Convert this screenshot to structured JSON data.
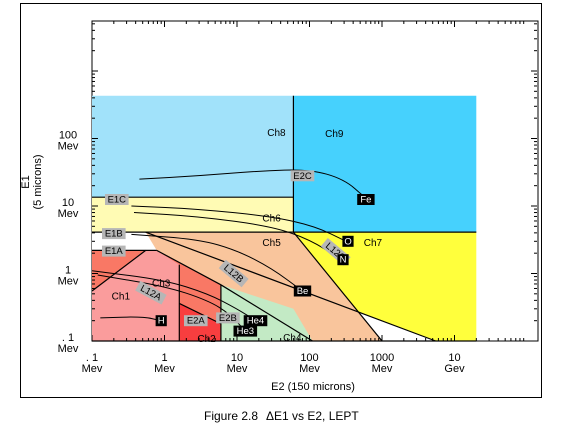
{
  "colors": {
    "ch8": "#a1e2fa",
    "ch9": "#46d1fd",
    "ch6": "#fffbb4",
    "ch7": "#ffff3c",
    "ch5": "#f9c59c",
    "ch3": "#f97865",
    "ch1": "#fa9c9c",
    "ch2": "#f83e3f",
    "ch4": "#c3eac5",
    "plot_bg": "#b6b6b6"
  },
  "chart_data": {
    "type": "diagram",
    "xlabel": "E2 (150 microns)",
    "ylabel_lines": [
      "E1",
      "(5 microns)"
    ],
    "x_axis": {
      "scale": "log",
      "ticks": [
        {
          "value": 0.1,
          "line1": ". 1",
          "line2": "Mev"
        },
        {
          "value": 1,
          "line1": "1",
          "line2": "Mev"
        },
        {
          "value": 10,
          "line1": "10",
          "line2": "Mev"
        },
        {
          "value": 100,
          "line1": "100",
          "line2": "Mev"
        },
        {
          "value": 1000,
          "line1": "1000",
          "line2": "Mev"
        },
        {
          "value": 10000,
          "line1": "10",
          "line2": "Gev"
        }
      ]
    },
    "y_axis": {
      "scale": "log",
      "ticks": [
        {
          "value": 0.1,
          "line1": ". 1",
          "line2": "Mev"
        },
        {
          "value": 1,
          "line1": "1",
          "line2": "Mev"
        },
        {
          "value": 10,
          "line1": "10",
          "line2": "Mev"
        },
        {
          "value": 100,
          "line1": "100",
          "line2": "Mev"
        }
      ]
    },
    "region_labels": [
      {
        "text": "Ch8",
        "x": 35,
        "y": 120
      },
      {
        "text": "Ch9",
        "x": 220,
        "y": 115
      },
      {
        "text": "Ch6",
        "x": 30,
        "y": 6.5
      },
      {
        "text": "Ch7",
        "x": 750,
        "y": 2.8
      },
      {
        "text": "Ch5",
        "x": 30,
        "y": 2.8
      },
      {
        "text": "Ch3",
        "x": 0.9,
        "y": 0.7
      },
      {
        "text": "Ch1",
        "x": 0.25,
        "y": 0.45
      },
      {
        "text": "Ch2",
        "x": 3.8,
        "y": 0.105
      },
      {
        "text": "Ch4",
        "x": 58,
        "y": 0.11
      }
    ],
    "boundary_labels": [
      {
        "text": "E2C",
        "x": 80,
        "y": 28,
        "dark": false,
        "rot": 0
      },
      {
        "text": "E1C",
        "x": 0.22,
        "y": 12.5,
        "dark": false,
        "rot": 0
      },
      {
        "text": "E1B",
        "x": 0.2,
        "y": 3.9,
        "dark": false,
        "rot": 0
      },
      {
        "text": "E1A",
        "x": 0.2,
        "y": 2.15,
        "dark": false,
        "rot": 0
      },
      {
        "text": "L12B",
        "x": 9,
        "y": 1.0,
        "dark": false,
        "rot": 40
      },
      {
        "text": "L12C",
        "x": 230,
        "y": 2.1,
        "dark": false,
        "rot": 40
      },
      {
        "text": "L12A",
        "x": 0.65,
        "y": 0.52,
        "dark": false,
        "rot": 28
      },
      {
        "text": "E2B",
        "x": 7.5,
        "y": 0.22,
        "dark": false,
        "rot": 0
      },
      {
        "text": "E2A",
        "x": 2.7,
        "y": 0.2,
        "dark": false,
        "rot": 0
      },
      {
        "text": "Fe",
        "x": 600,
        "y": 12.5,
        "dark": true,
        "rot": 0
      },
      {
        "text": "O",
        "x": 340,
        "y": 3.0,
        "dark": true,
        "rot": 0
      },
      {
        "text": "N",
        "x": 290,
        "y": 1.6,
        "dark": true,
        "rot": 0
      },
      {
        "text": "Be",
        "x": 80,
        "y": 0.55,
        "dark": true,
        "rot": 0
      },
      {
        "text": "He4",
        "x": 18,
        "y": 0.2,
        "dark": true,
        "rot": 0
      },
      {
        "text": "He3",
        "x": 13,
        "y": 0.14,
        "dark": true,
        "rot": 0
      },
      {
        "text": "H",
        "x": 0.9,
        "y": 0.2,
        "dark": true,
        "rot": 0
      }
    ]
  },
  "caption": {
    "figure": "Figure 2.8",
    "title": "ΔE1 vs E2, LEPT"
  }
}
